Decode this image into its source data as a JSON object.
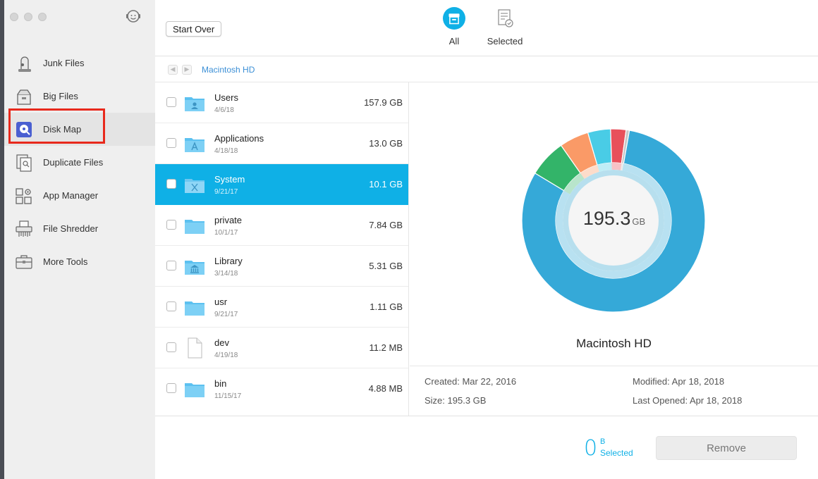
{
  "colors": {
    "accent": "#0fb0e6",
    "highlight": "#e8291c",
    "folder": "#5cc1f0"
  },
  "sidebar": {
    "items": [
      {
        "label": "Junk Files",
        "icon": "vacuum-icon"
      },
      {
        "label": "Big Files",
        "icon": "box-icon"
      },
      {
        "label": "Disk Map",
        "icon": "disk-map-icon",
        "active": true
      },
      {
        "label": "Duplicate Files",
        "icon": "duplicate-files-icon"
      },
      {
        "label": "App Manager",
        "icon": "app-manager-icon"
      },
      {
        "label": "File Shredder",
        "icon": "shredder-icon"
      },
      {
        "label": "More Tools",
        "icon": "toolbox-icon"
      }
    ]
  },
  "toolbar": {
    "start_over_label": "Start Over",
    "tabs": [
      {
        "label": "All",
        "active": true
      },
      {
        "label": "Selected",
        "active": false
      }
    ]
  },
  "breadcrumb": {
    "path": "Macintosh HD"
  },
  "files": [
    {
      "name": "Users",
      "date": "4/6/18",
      "size": "157.9 GB",
      "icon": "users-folder-icon"
    },
    {
      "name": "Applications",
      "date": "4/18/18",
      "size": "13.0 GB",
      "icon": "applications-folder-icon"
    },
    {
      "name": "System",
      "date": "9/21/17",
      "size": "10.1 GB",
      "icon": "system-folder-icon",
      "selected": true
    },
    {
      "name": "private",
      "date": "10/1/17",
      "size": "7.84 GB",
      "icon": "folder-icon"
    },
    {
      "name": "Library",
      "date": "3/14/18",
      "size": "5.31 GB",
      "icon": "library-folder-icon"
    },
    {
      "name": "usr",
      "date": "9/21/17",
      "size": "1.11 GB",
      "icon": "folder-icon"
    },
    {
      "name": "dev",
      "date": "4/19/18",
      "size": "11.2 MB",
      "icon": "document-icon"
    },
    {
      "name": "bin",
      "date": "11/15/17",
      "size": "4.88 MB",
      "icon": "folder-icon"
    }
  ],
  "disk": {
    "total_value": "195.3",
    "total_unit": "GB",
    "name": "Macintosh HD",
    "created": "Created: Mar 22, 2016",
    "size": "Size: 195.3 GB",
    "modified": "Modified: Apr 18, 2018",
    "last_opened": "Last Opened: Apr 18, 2018",
    "segments": [
      {
        "value": 157.9,
        "color": "#35a9d8"
      },
      {
        "value": 13.0,
        "color": "#33b469"
      },
      {
        "value": 10.1,
        "color": "#fa9a67"
      },
      {
        "value": 7.84,
        "color": "#49cce6"
      },
      {
        "value": 5.31,
        "color": "#e8505b"
      },
      {
        "value": 1.11,
        "color": "#c7c7c7"
      }
    ]
  },
  "bottom": {
    "selected_count": "0",
    "selected_unit": "B",
    "selected_label": "Selected",
    "remove_label": "Remove"
  }
}
